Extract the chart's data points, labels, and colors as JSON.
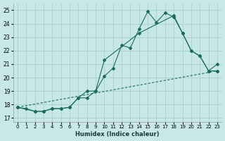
{
  "xlabel": "Humidex (Indice chaleur)",
  "xlim": [
    -0.5,
    23.5
  ],
  "ylim": [
    16.7,
    25.5
  ],
  "yticks": [
    17,
    18,
    19,
    20,
    21,
    22,
    23,
    24,
    25
  ],
  "xticks": [
    0,
    1,
    2,
    3,
    4,
    5,
    6,
    7,
    8,
    9,
    10,
    11,
    12,
    13,
    14,
    15,
    16,
    17,
    18,
    19,
    20,
    21,
    22,
    23
  ],
  "bg_color": "#c8e8e8",
  "grid_color": "#aad0d0",
  "line_color": "#1a6b5a",
  "line1_x": [
    0,
    1,
    2,
    3,
    4,
    5,
    6,
    7,
    8,
    9,
    10,
    11,
    12,
    13,
    14,
    15,
    16,
    17,
    18,
    19,
    20,
    21,
    22,
    23
  ],
  "line1_y": [
    17.8,
    17.7,
    17.5,
    17.5,
    17.7,
    17.7,
    17.8,
    18.5,
    19.0,
    19.0,
    20.1,
    20.7,
    22.4,
    22.2,
    23.6,
    24.9,
    24.1,
    24.8,
    24.5,
    23.3,
    22.0,
    21.6,
    20.5,
    20.5
  ],
  "line2_x": [
    0,
    2,
    3,
    4,
    5,
    6,
    7,
    8,
    9,
    10,
    14,
    18,
    19,
    20,
    21,
    22,
    23
  ],
  "line2_y": [
    17.8,
    17.5,
    17.5,
    17.7,
    17.7,
    17.8,
    18.5,
    18.5,
    19.0,
    21.3,
    23.3,
    24.6,
    23.3,
    22.0,
    21.6,
    20.5,
    21.0
  ],
  "line3_x": [
    0,
    23
  ],
  "line3_y": [
    17.8,
    20.5
  ]
}
